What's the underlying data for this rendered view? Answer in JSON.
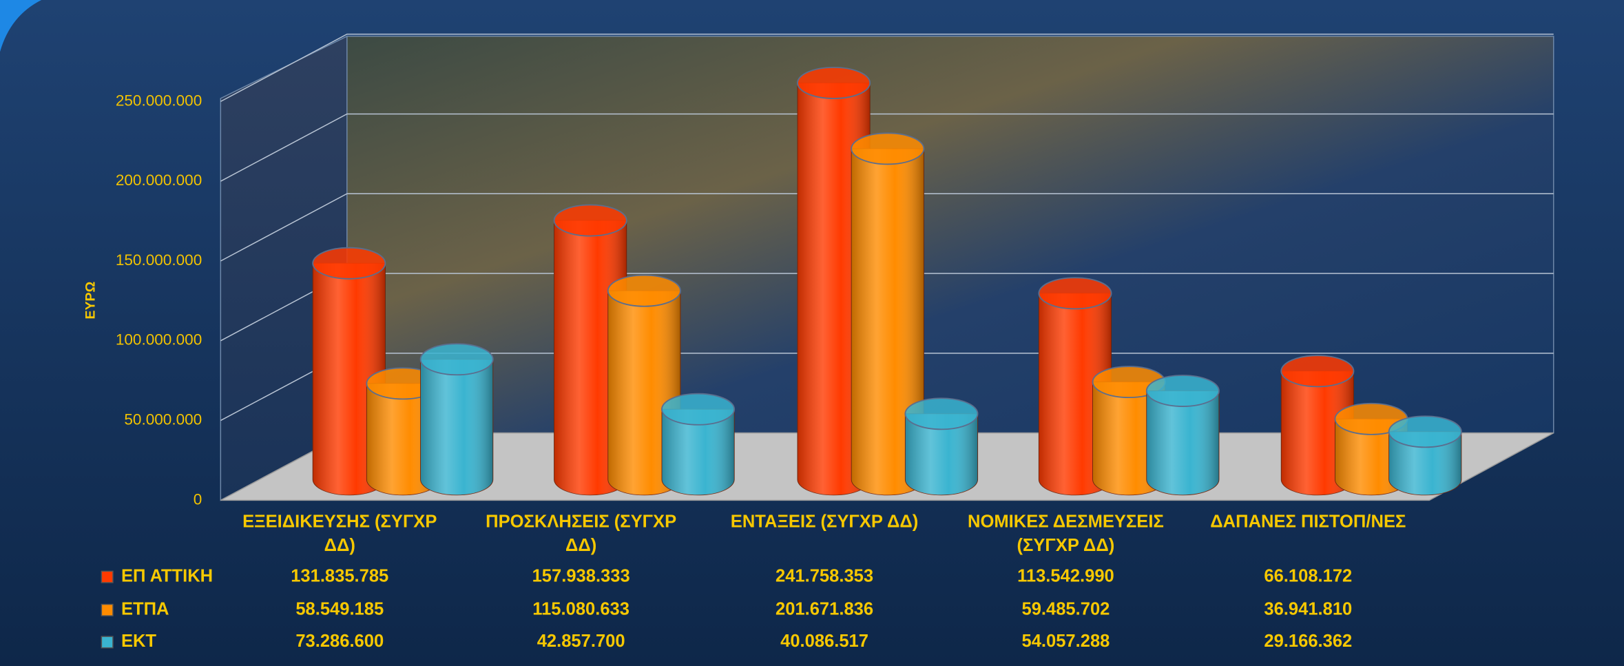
{
  "chart_data": {
    "type": "bar3d",
    "y_label": "ΕΥΡΩ",
    "categories": [
      "ΕΞΕΙΔΙΚΕΥΣΗΣ (ΣΥΓΧΡ ΔΔ)",
      "ΠΡΟΣΚΛΗΣΕΙΣ (ΣΥΓΧΡ ΔΔ)",
      "ΕΝΤΑΞΕΙΣ (ΣΥΓΧΡ ΔΔ)",
      "ΝΟΜΙΚΕΣ ΔΕΣΜΕΥΣΕΙΣ (ΣΥΓΧΡ ΔΔ)",
      "ΔΑΠΑΝΕΣ ΠΙΣΤΟΠ/ΝΕΣ"
    ],
    "series": [
      {
        "name": "ΕΠ ΑΤΤΙΚΗ",
        "color": "#ff3a00",
        "values": [
          131835785,
          157938333,
          241758353,
          113542990,
          66108172
        ],
        "value_labels": [
          "131.835.785",
          "157.938.333",
          "241.758.353",
          "113.542.990",
          "66.108.172"
        ]
      },
      {
        "name": "ΕΤΠΑ",
        "color": "#ff8c00",
        "values": [
          58549185,
          115080633,
          201671836,
          59485702,
          36941810
        ],
        "value_labels": [
          "58.549.185",
          "115.080.633",
          "201.671.836",
          "59.485.702",
          "36.941.810"
        ]
      },
      {
        "name": "ΕΚΤ",
        "color": "#3ab4d0",
        "values": [
          73286600,
          42857700,
          40086517,
          54057288,
          29166362
        ],
        "value_labels": [
          "73.286.600",
          "42.857.700",
          "40.086.517",
          "54.057.288",
          "29.166.362"
        ]
      }
    ],
    "ylim": [
      0,
      250000000
    ],
    "yticks": [
      0,
      {
        "value": 50000000,
        "label": "50.000.000"
      },
      {
        "value": 100000000,
        "label": "100.000.000"
      },
      {
        "value": 150000000,
        "label": "150.000.000"
      },
      {
        "value": 200000000,
        "label": "200.000.000"
      },
      {
        "value": 250000000,
        "label": "250.000.000"
      }
    ],
    "grid": true
  }
}
